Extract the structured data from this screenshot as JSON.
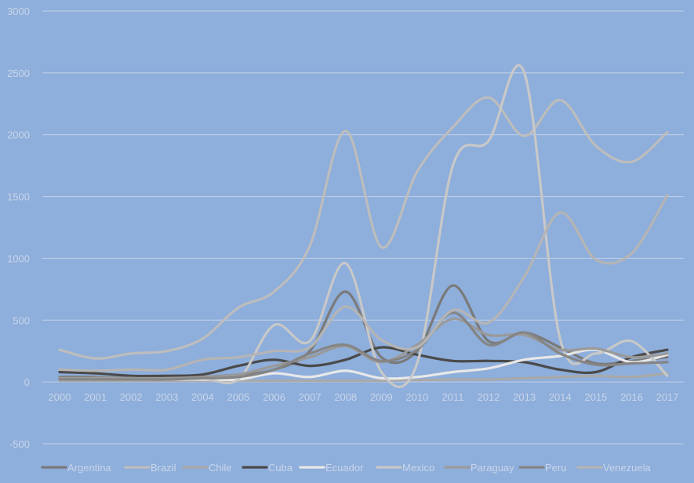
{
  "chart_data": {
    "type": "line",
    "title": "",
    "xlabel": "",
    "ylabel": "",
    "x": [
      "2000",
      "2001",
      "2002",
      "2003",
      "2004",
      "2005",
      "2006",
      "2007",
      "2008",
      "2009",
      "2010",
      "2011",
      "2012",
      "2013",
      "2014",
      "2015",
      "2016",
      "2017"
    ],
    "ylim": [
      -500,
      3000
    ],
    "yticks": [
      -500,
      0,
      500,
      1000,
      1500,
      2000,
      2500,
      3000
    ],
    "grid": true,
    "legend_position": "bottom",
    "series": [
      {
        "name": "Argentina",
        "color": "#7a7a7a",
        "values": [
          40,
          40,
          30,
          30,
          40,
          60,
          100,
          250,
          730,
          200,
          250,
          780,
          330,
          400,
          280,
          150,
          170,
          200
        ]
      },
      {
        "name": "Brazil",
        "color": "#bdbdbd",
        "values": [
          260,
          190,
          230,
          250,
          350,
          600,
          730,
          1100,
          2030,
          1090,
          1700,
          2060,
          2300,
          1990,
          2280,
          1910,
          1780,
          2020
        ]
      },
      {
        "name": "Chile",
        "color": "#a9a9a9",
        "values": [
          10,
          10,
          10,
          10,
          10,
          10,
          10,
          10,
          10,
          10,
          15,
          20,
          20,
          30,
          40,
          50,
          40,
          70
        ]
      },
      {
        "name": "Cuba",
        "color": "#4a4a4a",
        "values": [
          80,
          70,
          50,
          50,
          60,
          130,
          180,
          130,
          180,
          280,
          220,
          170,
          170,
          160,
          100,
          80,
          200,
          260
        ]
      },
      {
        "name": "Ecuador",
        "color": "#e8e8e8",
        "values": [
          20,
          20,
          20,
          20,
          20,
          20,
          70,
          40,
          90,
          30,
          40,
          80,
          110,
          180,
          210,
          260,
          160,
          220
        ]
      },
      {
        "name": "Mexico",
        "color": "#c8c8c8",
        "values": [
          20,
          30,
          30,
          20,
          30,
          20,
          460,
          330,
          960,
          80,
          150,
          1750,
          1950,
          2500,
          350,
          230,
          330,
          50
        ]
      },
      {
        "name": "Paraguay",
        "color": "#9a9a9a",
        "values": [
          30,
          30,
          30,
          30,
          40,
          60,
          130,
          200,
          290,
          160,
          300,
          510,
          380,
          380,
          260,
          270,
          200,
          230
        ]
      },
      {
        "name": "Peru",
        "color": "#858585",
        "values": [
          20,
          20,
          20,
          20,
          30,
          40,
          100,
          230,
          300,
          170,
          260,
          560,
          300,
          400,
          230,
          140,
          150,
          160
        ]
      },
      {
        "name": "Venezuela",
        "color": "#b5b5b5",
        "values": [
          100,
          90,
          100,
          100,
          180,
          200,
          250,
          280,
          610,
          340,
          280,
          580,
          480,
          850,
          1370,
          990,
          1040,
          1510
        ]
      }
    ]
  }
}
